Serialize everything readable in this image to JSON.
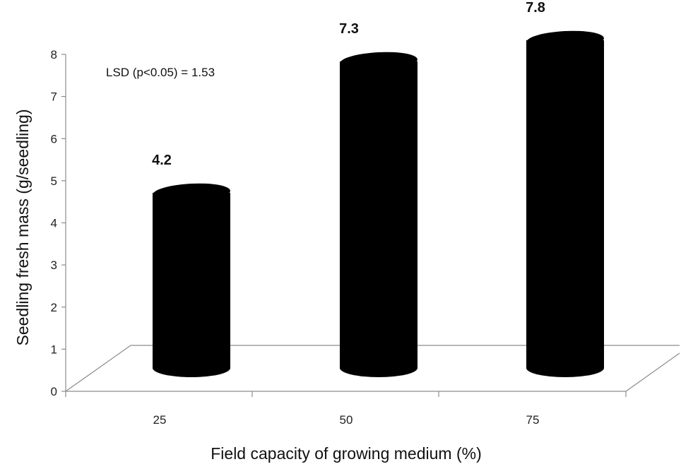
{
  "chart_data": {
    "type": "bar",
    "style": "3d-cylinder",
    "categories": [
      "25",
      "50",
      "75"
    ],
    "values": [
      4.2,
      7.3,
      7.8
    ],
    "data_labels": [
      "4.2",
      "7.3",
      "7.8"
    ],
    "title": "",
    "xlabel": "Field capacity of growing medium (%)",
    "ylabel": "Seedling fresh mass (g/seedling)",
    "ylim": [
      0,
      8
    ],
    "yticks": [
      "0",
      "1",
      "2",
      "3",
      "4",
      "5",
      "6",
      "7",
      "8"
    ],
    "annotation": "LSD (p<0.05) = 1.53",
    "bar_color": "#000000",
    "grid": false,
    "legend": "none"
  }
}
